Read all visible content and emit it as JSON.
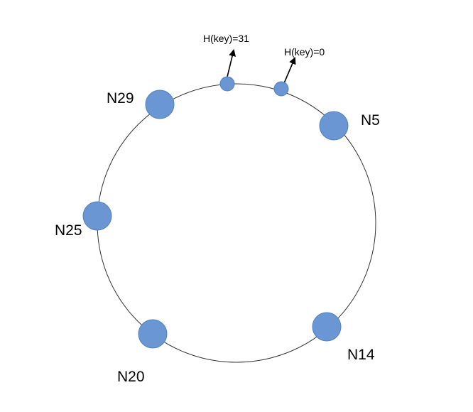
{
  "diagram": {
    "colors": {
      "ring": "#333333",
      "node_fill": "#6b96d4",
      "node_stroke": "#5580bf",
      "arrow": "#000000"
    },
    "nodes": [
      {
        "label": "N5"
      },
      {
        "label": "N14"
      },
      {
        "label": "N20"
      },
      {
        "label": "N25"
      },
      {
        "label": "N29"
      }
    ],
    "keys": [
      {
        "label": "H(key)=31"
      },
      {
        "label": "H(key)=0"
      }
    ]
  }
}
